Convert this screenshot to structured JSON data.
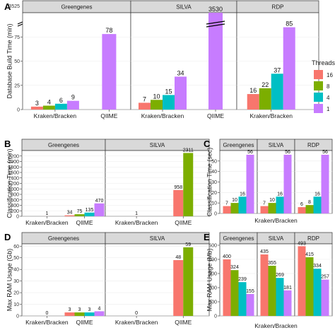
{
  "colors": {
    "16": "#F8766D",
    "8": "#7CAE00",
    "4": "#00BFC4",
    "1": "#C77CFF",
    "panel_bg": "#FFFFFF",
    "strip_bg": "#D9D9D9",
    "grid": "#EBEBEB",
    "border": "#333333"
  },
  "legend": {
    "title": "Threads",
    "entries": [
      "16",
      "8",
      "4",
      "1"
    ]
  },
  "chart_data": [
    {
      "panel": "A",
      "type": "bar",
      "ylabel": "Database Build Time (min)",
      "axis_break": true,
      "break_tick": "3525",
      "yticks": [
        0,
        25,
        50,
        75
      ],
      "ylim": [
        0,
        100
      ],
      "facets": [
        {
          "name": "Greengenes",
          "groups": [
            {
              "category": "Kraken/Bracken",
              "series": [
                {
                  "threads": "16",
                  "value": 3,
                  "label": "3"
                },
                {
                  "threads": "8",
                  "value": 4,
                  "label": "4"
                },
                {
                  "threads": "4",
                  "value": 6,
                  "label": "6"
                },
                {
                  "threads": "1",
                  "value": 9,
                  "label": "9"
                }
              ]
            },
            {
              "category": "QIIME",
              "series": [
                {
                  "threads": "1",
                  "value": 78,
                  "label": "78"
                }
              ]
            }
          ]
        },
        {
          "name": "SILVA",
          "groups": [
            {
              "category": "Kraken/Bracken",
              "series": [
                {
                  "threads": "16",
                  "value": 7,
                  "label": "7"
                },
                {
                  "threads": "8",
                  "value": 10,
                  "label": "10"
                },
                {
                  "threads": "4",
                  "value": 15,
                  "label": "15"
                },
                {
                  "threads": "1",
                  "value": 34,
                  "label": "34"
                }
              ]
            },
            {
              "category": "QIIME",
              "series": [
                {
                  "threads": "1",
                  "value": 3530,
                  "label": "3530"
                }
              ]
            }
          ]
        },
        {
          "name": "RDP",
          "groups": [
            {
              "category": "Kraken/Bracken",
              "series": [
                {
                  "threads": "16",
                  "value": 16,
                  "label": "16"
                },
                {
                  "threads": "8",
                  "value": 22,
                  "label": "22"
                },
                {
                  "threads": "4",
                  "value": 37,
                  "label": "37"
                },
                {
                  "threads": "1",
                  "value": 85,
                  "label": "85"
                }
              ]
            }
          ]
        }
      ]
    },
    {
      "panel": "B",
      "type": "bar",
      "ylabel": "Classification Time (min)",
      "yticks": [
        0,
        200,
        400,
        600,
        800,
        1000,
        1200,
        1400,
        1600,
        1800,
        2000,
        2200
      ],
      "ylim": [
        0,
        2400
      ],
      "facets": [
        {
          "name": "Greengenes",
          "groups": [
            {
              "category": "Kraken/Bracken",
              "series": [
                {
                  "threads": "16",
                  "value": 1,
                  "label": "1"
                }
              ]
            },
            {
              "category": "QIIME",
              "series": [
                {
                  "threads": "16",
                  "value": 34,
                  "label": "34"
                },
                {
                  "threads": "8",
                  "value": 75,
                  "label": "75"
                },
                {
                  "threads": "4",
                  "value": 135,
                  "label": "135"
                },
                {
                  "threads": "1",
                  "value": 470,
                  "label": "470"
                }
              ]
            }
          ]
        },
        {
          "name": "SILVA",
          "groups": [
            {
              "category": "Kraken/Bracken",
              "series": [
                {
                  "threads": "16",
                  "value": 1,
                  "label": "1"
                }
              ]
            },
            {
              "category": "QIIME",
              "series": [
                {
                  "threads": "16",
                  "value": 958,
                  "label": "958"
                },
                {
                  "threads": "8",
                  "value": 2311,
                  "label": "2311"
                }
              ]
            }
          ]
        }
      ]
    },
    {
      "panel": "C",
      "type": "bar",
      "ylabel": "Classification Time (sec)",
      "xlabel": "Kraken/Bracken",
      "yticks": [
        0,
        10,
        20,
        30,
        40,
        50
      ],
      "ylim": [
        0,
        60
      ],
      "facets": [
        {
          "name": "Greengenes",
          "groups": [
            {
              "category": "",
              "series": [
                {
                  "threads": "16",
                  "value": 7,
                  "label": "7"
                },
                {
                  "threads": "8",
                  "value": 10,
                  "label": "10"
                },
                {
                  "threads": "4",
                  "value": 16,
                  "label": "16"
                },
                {
                  "threads": "1",
                  "value": 56,
                  "label": "56"
                }
              ]
            }
          ]
        },
        {
          "name": "SILVA",
          "groups": [
            {
              "category": "",
              "series": [
                {
                  "threads": "16",
                  "value": 7,
                  "label": "7"
                },
                {
                  "threads": "8",
                  "value": 10,
                  "label": "10"
                },
                {
                  "threads": "4",
                  "value": 16,
                  "label": "16"
                },
                {
                  "threads": "1",
                  "value": 56,
                  "label": "56"
                }
              ]
            }
          ]
        },
        {
          "name": "RDP",
          "groups": [
            {
              "category": "",
              "series": [
                {
                  "threads": "16",
                  "value": 6,
                  "label": "6"
                },
                {
                  "threads": "8",
                  "value": 8,
                  "label": "8"
                },
                {
                  "threads": "4",
                  "value": 16,
                  "label": "16"
                },
                {
                  "threads": "1",
                  "value": 56,
                  "label": "56"
                }
              ]
            }
          ]
        }
      ]
    },
    {
      "panel": "D",
      "type": "bar",
      "ylabel": "Max RAM Usage (Gb)",
      "yticks": [
        0,
        10,
        20,
        30,
        40,
        50,
        60
      ],
      "ylim": [
        0,
        62
      ],
      "facets": [
        {
          "name": "Greengenes",
          "groups": [
            {
              "category": "Kraken/Bracken",
              "series": [
                {
                  "threads": "16",
                  "value": 0,
                  "label": "0"
                }
              ]
            },
            {
              "category": "QIIME",
              "series": [
                {
                  "threads": "16",
                  "value": 3,
                  "label": "3"
                },
                {
                  "threads": "8",
                  "value": 3,
                  "label": "3"
                },
                {
                  "threads": "4",
                  "value": 3,
                  "label": "3"
                },
                {
                  "threads": "1",
                  "value": 4,
                  "label": "4"
                }
              ]
            }
          ]
        },
        {
          "name": "SILVA",
          "groups": [
            {
              "category": "Kraken/Bracken",
              "series": [
                {
                  "threads": "16",
                  "value": 0,
                  "label": "0"
                }
              ]
            },
            {
              "category": "QIIME",
              "series": [
                {
                  "threads": "16",
                  "value": 48,
                  "label": "48"
                },
                {
                  "threads": "8",
                  "value": 59,
                  "label": "59"
                }
              ]
            }
          ]
        }
      ]
    },
    {
      "panel": "E",
      "type": "bar",
      "ylabel": "Max RAM Usage (Mb)",
      "xlabel": "Kraken/Bracken",
      "yticks": [
        0,
        100,
        200,
        300,
        400,
        500
      ],
      "ylim": [
        0,
        510
      ],
      "facets": [
        {
          "name": "Greengenes",
          "groups": [
            {
              "category": "",
              "series": [
                {
                  "threads": "16",
                  "value": 400,
                  "label": "400"
                },
                {
                  "threads": "8",
                  "value": 324,
                  "label": "324"
                },
                {
                  "threads": "4",
                  "value": 239,
                  "label": "239"
                },
                {
                  "threads": "1",
                  "value": 155,
                  "label": "155"
                }
              ]
            }
          ]
        },
        {
          "name": "SILVA",
          "groups": [
            {
              "category": "",
              "series": [
                {
                  "threads": "16",
                  "value": 435,
                  "label": "435"
                },
                {
                  "threads": "8",
                  "value": 355,
                  "label": "355"
                },
                {
                  "threads": "4",
                  "value": 269,
                  "label": "269"
                },
                {
                  "threads": "1",
                  "value": 181,
                  "label": "181"
                }
              ]
            }
          ]
        },
        {
          "name": "RDP",
          "groups": [
            {
              "category": "",
              "series": [
                {
                  "threads": "16",
                  "value": 493,
                  "label": "493"
                },
                {
                  "threads": "8",
                  "value": 415,
                  "label": "415"
                },
                {
                  "threads": "4",
                  "value": 334,
                  "label": "334"
                },
                {
                  "threads": "1",
                  "value": 257,
                  "label": "257"
                }
              ]
            }
          ]
        }
      ]
    }
  ]
}
